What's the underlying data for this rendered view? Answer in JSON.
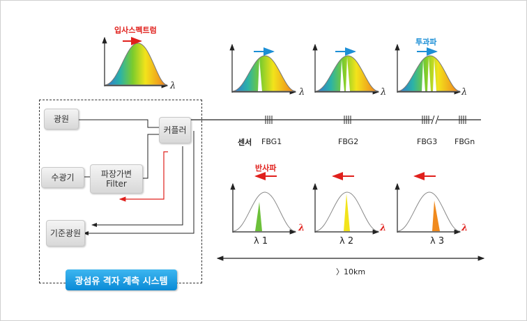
{
  "titles": {
    "input_spectrum": "입사스펙트럼",
    "transmitted": "투과파",
    "reflected": "반사파"
  },
  "boxes": {
    "light_source": "광원",
    "coupler": "커플러",
    "receiver": "수광기",
    "filter_line1": "파장가변",
    "filter_line2": "Filter",
    "reference_source": "기준광원"
  },
  "sensors": {
    "sensor_label": "센서",
    "fbg1": "FBG1",
    "fbg2": "FBG2",
    "fbg3": "FBG3",
    "fbgn": "FBGn"
  },
  "axis_symbol": "λ",
  "reflected_peaks": [
    "λ 1",
    "λ 2",
    "λ 3"
  ],
  "distance": "〉10km",
  "system_label": "광섬유 격자 계측 시스템",
  "colors": {
    "red": "#e0201c",
    "blue": "#1c8fd6",
    "peak1": "#6cc03a",
    "peak2": "#f2e31b",
    "peak3": "#f08a1e"
  }
}
